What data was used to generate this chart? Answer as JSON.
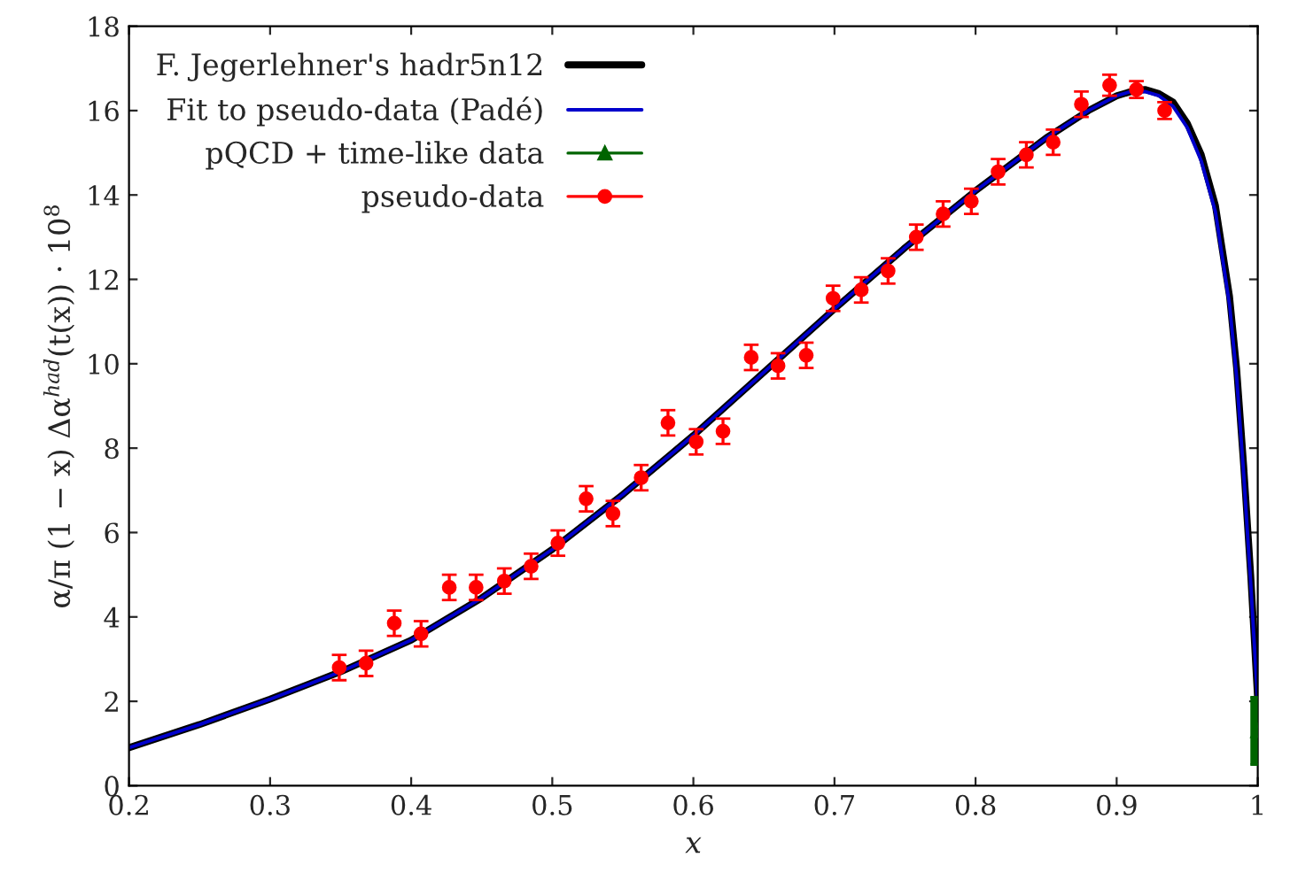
{
  "chart_data": {
    "type": "scatter",
    "xlabel": "x",
    "ylabel": "α/π (1 − x) Δα$^{had}$(t(x)) · 10$^{8}$",
    "xlim": [
      0.2,
      1
    ],
    "ylim": [
      0,
      18
    ],
    "xticks": [
      0.2,
      0.3,
      0.4,
      0.5,
      0.6,
      0.7,
      0.8,
      0.9,
      {
        "value": 1,
        "label": "1"
      }
    ],
    "yticks": [
      0,
      2,
      4,
      6,
      8,
      10,
      12,
      14,
      16,
      18
    ],
    "grid": false,
    "legend": "top left",
    "series": [
      {
        "name": "F. Jegerlehner's hadr5n12",
        "type": "line",
        "color": "#000000",
        "marker": "none",
        "line_style": "solid",
        "x": [
          0.2,
          0.25,
          0.3,
          0.35,
          0.4,
          0.45,
          0.5,
          0.55,
          0.6,
          0.65,
          0.7,
          0.75,
          0.8,
          0.85,
          0.88,
          0.9,
          0.91,
          0.92,
          0.93,
          0.94,
          0.95,
          0.96,
          0.97,
          0.98,
          0.985,
          0.99,
          0.995,
          1.0
        ],
        "values": [
          0.9,
          1.45,
          2.05,
          2.7,
          3.45,
          4.45,
          5.6,
          6.9,
          8.3,
          9.8,
          11.3,
          12.75,
          14.1,
          15.35,
          16.0,
          16.35,
          16.45,
          16.5,
          16.4,
          16.2,
          15.7,
          14.95,
          13.75,
          11.6,
          9.9,
          7.6,
          5.0,
          2.0
        ]
      },
      {
        "name": "Fit to pseudo-data (Padé)",
        "type": "line",
        "color": "#0000cc",
        "marker": "none",
        "line_style": "solid",
        "x": [
          0.2,
          0.25,
          0.3,
          0.35,
          0.4,
          0.45,
          0.5,
          0.55,
          0.6,
          0.65,
          0.7,
          0.75,
          0.8,
          0.85,
          0.88,
          0.9,
          0.91,
          0.92,
          0.93,
          0.94,
          0.95,
          0.96,
          0.97,
          0.98,
          0.985,
          0.99,
          0.995,
          1.0
        ],
        "values": [
          0.9,
          1.45,
          2.05,
          2.7,
          3.45,
          4.45,
          5.6,
          6.9,
          8.3,
          9.8,
          11.3,
          12.75,
          14.1,
          15.35,
          16.0,
          16.35,
          16.45,
          16.45,
          16.35,
          16.1,
          15.6,
          14.8,
          13.6,
          11.4,
          9.7,
          7.4,
          4.8,
          2.0
        ]
      },
      {
        "name": "pQCD + time-like data",
        "color": "#006400",
        "marker": "triangle",
        "x": [
          1.0
        ],
        "values": [
          1.3
        ],
        "errors": [
          [
            0.5,
            2.1
          ]
        ]
      },
      {
        "name": "pseudo-data",
        "color": "#ff0000",
        "marker": "circle",
        "x": [
          0.349,
          0.368,
          0.388,
          0.407,
          0.427,
          0.446,
          0.466,
          0.485,
          0.504,
          0.524,
          0.543,
          0.563,
          0.582,
          0.602,
          0.621,
          0.641,
          0.66,
          0.68,
          0.699,
          0.719,
          0.738,
          0.758,
          0.777,
          0.797,
          0.816,
          0.836,
          0.855,
          0.875,
          0.895,
          0.914,
          0.934
        ],
        "values": [
          2.8,
          2.9,
          3.85,
          3.6,
          4.7,
          4.7,
          4.85,
          5.2,
          5.75,
          6.8,
          6.45,
          7.3,
          8.6,
          8.15,
          8.4,
          10.15,
          9.95,
          10.2,
          11.55,
          11.75,
          12.2,
          13.0,
          13.55,
          13.85,
          14.55,
          14.95,
          15.25,
          16.15,
          16.6,
          16.5,
          16.0
        ],
        "errors": [
          0.3,
          0.3,
          0.3,
          0.3,
          0.3,
          0.3,
          0.3,
          0.3,
          0.3,
          0.3,
          0.3,
          0.3,
          0.3,
          0.3,
          0.3,
          0.3,
          0.3,
          0.3,
          0.3,
          0.3,
          0.3,
          0.3,
          0.3,
          0.3,
          0.3,
          0.3,
          0.3,
          0.3,
          0.25,
          0.2,
          0.2
        ]
      }
    ]
  }
}
